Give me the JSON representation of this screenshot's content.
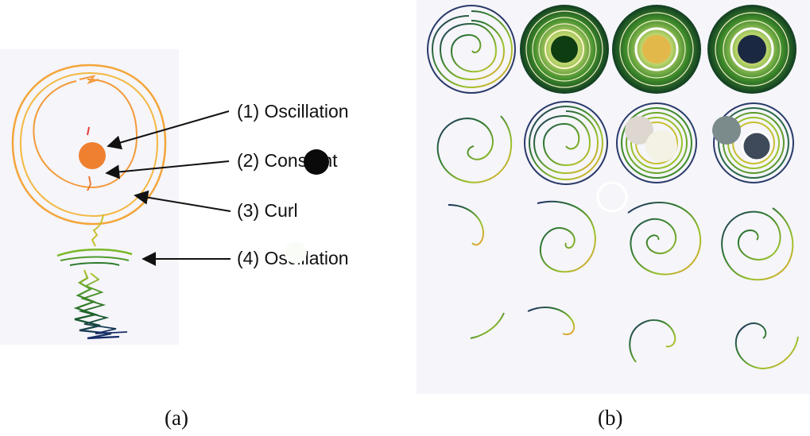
{
  "panel_a": {
    "caption": "(a)",
    "labels": [
      {
        "text": "(1) Oscillation"
      },
      {
        "text": "(2) Constant"
      },
      {
        "text": "(3) Curl"
      },
      {
        "text": "(4) Oscillation"
      }
    ]
  },
  "panel_b": {
    "caption": "(b)"
  },
  "colors": {
    "panel_bg": "#f5f5fa",
    "orange": "#f4a53a",
    "dot": "#ee8030",
    "green": "#7ab828",
    "dark_green": "#0f3d12",
    "yellow": "#e3b84a",
    "navy": "#1a2842",
    "blob_black": "#0a0a0a"
  }
}
